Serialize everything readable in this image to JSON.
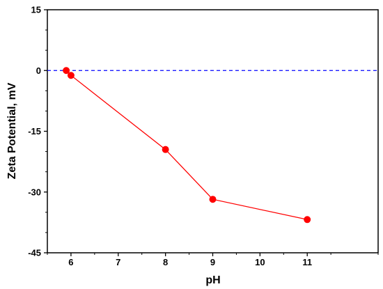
{
  "chart_data": {
    "type": "line",
    "title": "",
    "xlabel": "pH",
    "ylabel": "Zeta Potential, mV",
    "xlim": [
      5.5,
      12.5
    ],
    "ylim": [
      -45,
      15
    ],
    "x_ticks": [
      6,
      7,
      8,
      9,
      10,
      11
    ],
    "y_ticks": [
      15,
      0,
      -15,
      -30,
      -45
    ],
    "x_tick_labels": [
      "6",
      "7",
      "8",
      "9",
      "10",
      "11"
    ],
    "y_tick_labels": [
      "15",
      "0",
      "-15",
      "-30",
      "-45"
    ],
    "grid": false,
    "legend": "none",
    "reference_line": {
      "y": 0,
      "style": "dashed",
      "color": "#0000ff"
    },
    "series": [
      {
        "color": "#ff0000",
        "marker": "circle",
        "x": [
          5.9,
          6.0,
          8.0,
          9.0,
          11.0
        ],
        "y": [
          0.0,
          -1.2,
          -19.5,
          -31.8,
          -36.8
        ]
      }
    ]
  }
}
